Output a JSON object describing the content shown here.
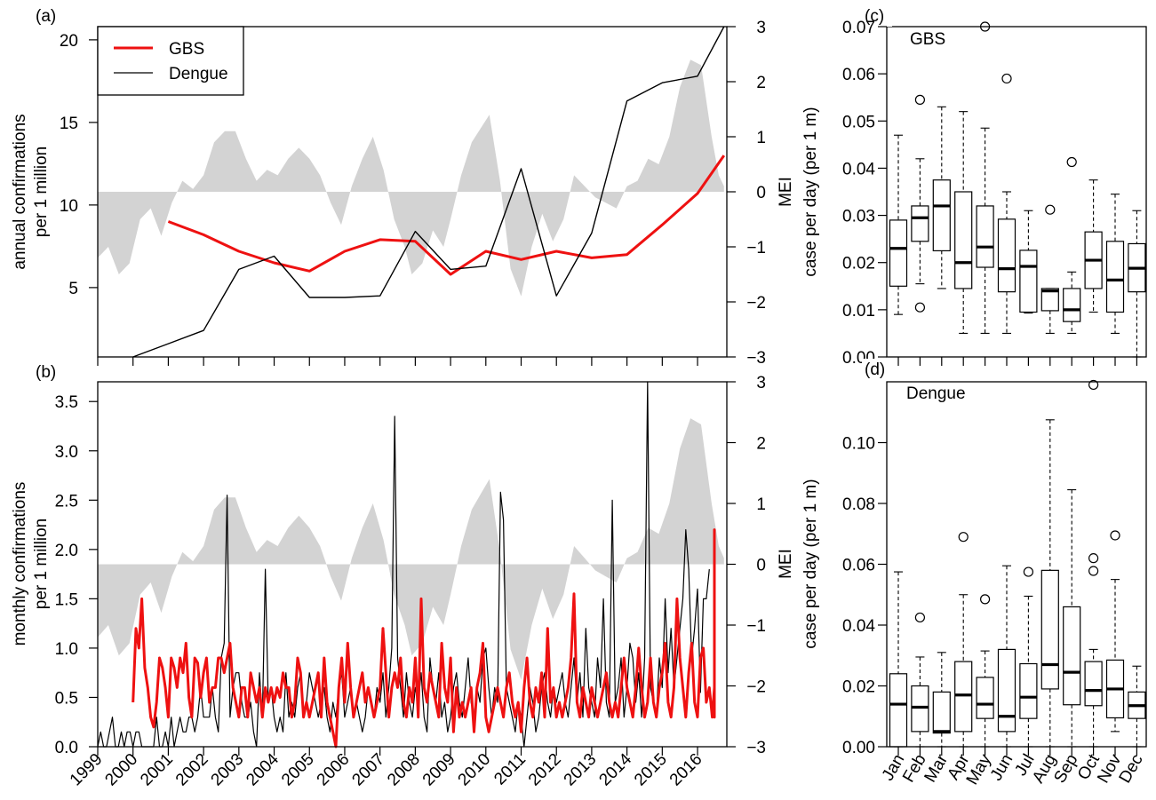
{
  "chart_data": [
    {
      "id": "a",
      "panel_label": "(a)",
      "type": "line",
      "ylabel_left": [
        "annual confirmations",
        "per 1 million"
      ],
      "ylabel_right": "MEI",
      "ylim_left": [
        0.8,
        20.8
      ],
      "yticks_left": [
        "5",
        "10",
        "15",
        "20"
      ],
      "ylim_right": [
        -3,
        3
      ],
      "yticks_right": [
        "3",
        "2",
        "1",
        "0",
        "−1",
        "−2",
        "−3"
      ],
      "legend_position": "top-left",
      "legend": [
        "GBS",
        "Dengue"
      ],
      "colors": {
        "GBS": "#ee1111",
        "Dengue": "#000000",
        "MEI": "#d3d3d3"
      },
      "series": [
        {
          "name": "GBS",
          "x": [
            2001,
            2002,
            2003,
            2004,
            2005,
            2006,
            2007,
            2008,
            2009,
            2010,
            2011,
            2012,
            2013,
            2014,
            2015,
            2016,
            2016.75
          ],
          "values": [
            9.0,
            8.2,
            7.2,
            6.5,
            6.0,
            7.2,
            7.9,
            7.8,
            5.8,
            7.2,
            6.7,
            7.2,
            6.8,
            7.0,
            8.8,
            10.7,
            13.0
          ]
        },
        {
          "name": "Dengue",
          "x": [
            2000,
            2001,
            2002,
            2003,
            2004,
            2005,
            2006,
            2007,
            2008,
            2009,
            2010,
            2011,
            2012,
            2013,
            2014,
            2015,
            2016,
            2016.75
          ],
          "values": [
            0.8,
            1.6,
            2.4,
            6.1,
            6.9,
            4.4,
            4.4,
            4.5,
            8.4,
            6.1,
            6.3,
            12.2,
            4.5,
            8.3,
            16.3,
            17.4,
            17.8,
            20.8
          ]
        }
      ]
    },
    {
      "id": "b",
      "panel_label": "(b)",
      "type": "line",
      "ylabel_left": [
        "monthly confirmations",
        "per 1 million"
      ],
      "ylabel_right": "MEI",
      "ylim_left": [
        0,
        3.7
      ],
      "yticks_left": [
        "0.0",
        "0.5",
        "1.0",
        "1.5",
        "2.0",
        "2.5",
        "3.0",
        "3.5"
      ],
      "ylim_right": [
        -3,
        3
      ],
      "yticks_right": [
        "3",
        "2",
        "1",
        "0",
        "−1",
        "−2",
        "−3"
      ],
      "xticks": [
        "1999",
        "2000",
        "2001",
        "2002",
        "2003",
        "2004",
        "2005",
        "2006",
        "2007",
        "2008",
        "2009",
        "2010",
        "2011",
        "2012",
        "2013",
        "2014",
        "2015",
        "2016"
      ],
      "colors": {
        "GBS": "#ee1111",
        "Dengue": "#000000",
        "MEI": "#d3d3d3"
      },
      "series": [
        {
          "name": "GBS",
          "x_start": 2000,
          "x_step": 0.08333,
          "values": [
            0.45,
            1.2,
            1.0,
            1.5,
            0.8,
            0.6,
            0.3,
            0.2,
            0.45,
            0.9,
            0.8,
            0.6,
            0.3,
            0.9,
            0.8,
            0.6,
            0.9,
            0.75,
            1.05,
            0.5,
            0.3,
            0.9,
            0.85,
            0.5,
            0.75,
            0.9,
            0.45,
            0.6,
            0.6,
            0.9,
            0.9,
            0.75,
            0.9,
            1.05,
            0.6,
            0.45,
            0.3,
            0.6,
            0.6,
            0.3,
            0.75,
            0.6,
            0.45,
            0.6,
            0.3,
            0.6,
            0.45,
            0.6,
            0.45,
            0.6,
            0.5,
            0.75,
            0.6,
            0.6,
            0.3,
            0.45,
            0.9,
            0.75,
            0.3,
            0.45,
            0.3,
            0.45,
            0.6,
            0.75,
            0.3,
            0.9,
            0.45,
            0.3,
            0.15,
            0.0,
            0.6,
            0.9,
            0.45,
            1.05,
            0.6,
            0.3,
            0.45,
            0.6,
            0.75,
            0.45,
            0.6,
            0.45,
            0.3,
            0.45,
            0.6,
            1.2,
            0.75,
            0.3,
            0.6,
            0.75,
            0.6,
            0.9,
            0.45,
            0.3,
            0.6,
            0.45,
            0.9,
            0.3,
            1.5,
            0.6,
            0.45,
            0.75,
            0.6,
            0.45,
            0.3,
            1.05,
            0.6,
            0.45,
            0.9,
            0.15,
            0.6,
            0.3,
            0.45,
            0.3,
            0.45,
            0.6,
            0.15,
            0.6,
            0.75,
            1.05,
            0.3,
            0.15,
            0.3,
            0.45,
            0.6,
            0.45,
            0.3,
            0.6,
            0.75,
            0.45,
            0.3,
            0.45,
            0.15,
            0.6,
            0.9,
            0.45,
            0.3,
            0.6,
            0.45,
            0.75,
            0.3,
            1.2,
            0.45,
            0.6,
            0.3,
            0.45,
            0.3,
            0.45,
            0.6,
            0.9,
            1.55,
            0.45,
            0.3,
            0.6,
            0.45,
            0.3,
            0.6,
            0.45,
            0.3,
            0.45,
            0.6,
            0.75,
            0.45,
            0.3,
            0.45,
            0.3,
            0.6,
            0.9,
            0.6,
            0.45,
            0.3,
            0.6,
            1.0,
            0.6,
            0.3,
            0.45,
            0.9,
            0.45,
            0.3,
            0.6,
            0.75,
            1.05,
            0.45,
            0.3,
            0.6,
            1.5,
            0.9,
            0.6,
            0.3,
            0.75,
            1.05,
            0.45,
            0.3,
            0.9,
            1.0,
            0.45,
            0.6,
            0.3,
            0.6,
            1.2,
            0.9,
            0.6,
            0.3,
            0.75,
            1.05,
            0.45,
            0.3,
            0.6,
            1.2,
            1.5,
            0.9,
            0.6,
            0.45,
            1.6,
            1.0,
            0.6,
            0.3,
            0.9,
            1.5,
            1.05,
            2.2,
            1.8,
            0.95
          ]
        },
        {
          "name": "Dengue",
          "x_start": 1999,
          "x_step": 0.08333,
          "values": [
            0.0,
            0.15,
            0.0,
            0.0,
            0.15,
            0.3,
            0.0,
            0.0,
            0.15,
            0.0,
            0.15,
            0.15,
            0.0,
            0.15,
            0.15,
            0.0,
            0.0,
            0.0,
            0.0,
            0.0,
            0.3,
            0.0,
            0.0,
            0.15,
            0.0,
            0.3,
            0.0,
            0.15,
            0.3,
            0.15,
            0.15,
            0.3,
            0.3,
            0.15,
            0.3,
            0.6,
            0.3,
            0.3,
            0.3,
            0.6,
            0.3,
            0.15,
            0.9,
            1.05,
            2.55,
            0.3,
            0.6,
            0.75,
            0.75,
            0.45,
            0.3,
            0.3,
            0.45,
            0.15,
            0.0,
            0.75,
            0.3,
            1.8,
            0.45,
            0.6,
            0.3,
            0.15,
            0.3,
            0.15,
            0.75,
            0.3,
            0.45,
            0.3,
            0.6,
            0.75,
            0.3,
            0.45,
            0.75,
            0.6,
            0.45,
            0.3,
            0.45,
            0.6,
            0.3,
            0.15,
            0.45,
            0.3,
            0.6,
            0.75,
            0.3,
            0.45,
            0.6,
            0.3,
            0.45,
            0.3,
            0.15,
            0.3,
            0.6,
            0.45,
            0.3,
            0.6,
            0.45,
            0.75,
            0.3,
            0.6,
            1.0,
            3.35,
            0.9,
            0.6,
            0.3,
            0.75,
            0.45,
            0.3,
            0.6,
            0.45,
            0.75,
            0.3,
            0.15,
            0.9,
            0.6,
            0.45,
            0.75,
            0.3,
            0.45,
            0.15,
            0.3,
            0.6,
            0.75,
            0.45,
            0.3,
            0.6,
            0.9,
            0.45,
            0.3,
            0.6,
            0.45,
            0.9,
            1.0,
            0.6,
            0.3,
            0.6,
            0.45,
            2.58,
            2.3,
            0.6,
            0.45,
            0.3,
            0.15,
            0.45,
            0.3,
            0.0,
            0.3,
            0.6,
            0.45,
            0.15,
            0.3,
            0.6,
            0.75,
            0.45,
            0.3,
            0.6,
            0.45,
            0.6,
            0.75,
            0.45,
            0.3,
            0.6,
            0.9,
            0.45,
            0.75,
            0.3,
            1.2,
            0.6,
            0.45,
            0.3,
            0.9,
            0.6,
            1.5,
            0.45,
            0.3,
            2.5,
            0.45,
            0.6,
            0.9,
            0.3,
            0.6,
            1.05,
            0.9,
            0.45,
            0.75,
            0.3,
            0.9,
            3.7,
            0.6,
            0.45,
            0.3,
            0.9,
            0.6,
            1.5,
            0.75,
            1.2,
            0.6,
            0.9,
            1.2,
            1.5,
            2.2,
            1.8,
            0.9,
            1.2,
            1.6,
            0.55,
            1.5,
            1.5,
            1.8
          ]
        }
      ]
    },
    {
      "id": "c",
      "panel_label": "(c)",
      "type": "box",
      "title": "GBS",
      "ylabel": "case per day (per 1 m)",
      "ylim": [
        0,
        0.07
      ],
      "yticks": [
        "0.00",
        "0.01",
        "0.02",
        "0.03",
        "0.04",
        "0.05",
        "0.06",
        "0.07"
      ],
      "categories": [
        "Jan",
        "Feb",
        "Mar",
        "Apr",
        "May",
        "Jun",
        "Jul",
        "Aug",
        "Sep",
        "Oct",
        "Nov",
        "Dec"
      ],
      "boxes": [
        {
          "min": 0.009,
          "q1": 0.015,
          "median": 0.023,
          "q3": 0.029,
          "max": 0.047,
          "outliers": []
        },
        {
          "min": 0.0155,
          "q1": 0.0245,
          "median": 0.0295,
          "q3": 0.032,
          "max": 0.042,
          "outliers": [
            0.0545,
            0.0105
          ]
        },
        {
          "min": 0.0145,
          "q1": 0.0225,
          "median": 0.032,
          "q3": 0.0375,
          "max": 0.053,
          "outliers": []
        },
        {
          "min": 0.005,
          "q1": 0.0145,
          "median": 0.02,
          "q3": 0.035,
          "max": 0.052,
          "outliers": []
        },
        {
          "min": 0.005,
          "q1": 0.019,
          "median": 0.0233,
          "q3": 0.032,
          "max": 0.0485,
          "outliers": [
            0.0705
          ]
        },
        {
          "min": 0.005,
          "q1": 0.0138,
          "median": 0.0187,
          "q3": 0.0292,
          "max": 0.035,
          "outliers": [
            0.059
          ]
        },
        {
          "min": 0.0093,
          "q1": 0.0095,
          "median": 0.0192,
          "q3": 0.0226,
          "max": 0.031,
          "outliers": []
        },
        {
          "min": 0.005,
          "q1": 0.0098,
          "median": 0.014,
          "q3": 0.0145,
          "max": 0.0145,
          "outliers": [
            0.0312
          ]
        },
        {
          "min": 0.005,
          "q1": 0.0075,
          "median": 0.01,
          "q3": 0.0145,
          "max": 0.018,
          "outliers": [
            0.0413
          ]
        },
        {
          "min": 0.0095,
          "q1": 0.0145,
          "median": 0.0205,
          "q3": 0.0265,
          "max": 0.0375,
          "outliers": []
        },
        {
          "min": 0.005,
          "q1": 0.0095,
          "median": 0.0163,
          "q3": 0.0245,
          "max": 0.0345,
          "outliers": []
        },
        {
          "min": 0.0,
          "q1": 0.0138,
          "median": 0.0188,
          "q3": 0.024,
          "max": 0.031,
          "outliers": []
        }
      ]
    },
    {
      "id": "d",
      "panel_label": "(d)",
      "type": "box",
      "title": "Dengue",
      "ylabel": "case per day (per 1 m)",
      "ylim": [
        0,
        0.12
      ],
      "yticks": [
        "0.00",
        "0.02",
        "0.04",
        "0.06",
        "0.08",
        "0.10"
      ],
      "categories": [
        "Jan",
        "Feb",
        "Mar",
        "Apr",
        "May",
        "Jun",
        "Jul",
        "Aug",
        "Sep",
        "Oct",
        "Nov",
        "Dec"
      ],
      "boxes": [
        {
          "min": 0.0,
          "q1": 0.0,
          "median": 0.014,
          "q3": 0.024,
          "max": 0.0575,
          "outliers": []
        },
        {
          "min": 0.0,
          "q1": 0.005,
          "median": 0.013,
          "q3": 0.02,
          "max": 0.0295,
          "outliers": [
            0.0425
          ]
        },
        {
          "min": 0.0,
          "q1": 0.0045,
          "median": 0.005,
          "q3": 0.018,
          "max": 0.031,
          "outliers": []
        },
        {
          "min": 0.0,
          "q1": 0.005,
          "median": 0.017,
          "q3": 0.028,
          "max": 0.05,
          "outliers": [
            0.069
          ]
        },
        {
          "min": 0.0,
          "q1": 0.0093,
          "median": 0.014,
          "q3": 0.0228,
          "max": 0.0315,
          "outliers": [
            0.0485
          ]
        },
        {
          "min": 0.0,
          "q1": 0.005,
          "median": 0.01,
          "q3": 0.032,
          "max": 0.0595,
          "outliers": []
        },
        {
          "min": 0.0,
          "q1": 0.0093,
          "median": 0.0163,
          "q3": 0.0273,
          "max": 0.0495,
          "outliers": [
            0.0575
          ]
        },
        {
          "min": 0.0,
          "q1": 0.019,
          "median": 0.027,
          "q3": 0.058,
          "max": 0.1075,
          "outliers": []
        },
        {
          "min": 0.0,
          "q1": 0.0138,
          "median": 0.0245,
          "q3": 0.046,
          "max": 0.0845,
          "outliers": []
        },
        {
          "min": 0.0,
          "q1": 0.0135,
          "median": 0.0185,
          "q3": 0.028,
          "max": 0.032,
          "outliers": [
            0.062,
            0.0578,
            0.119
          ]
        },
        {
          "min": 0.005,
          "q1": 0.0095,
          "median": 0.019,
          "q3": 0.0285,
          "max": 0.055,
          "outliers": [
            0.0695
          ]
        },
        {
          "min": 0.0,
          "q1": 0.0093,
          "median": 0.0135,
          "q3": 0.018,
          "max": 0.0265,
          "outliers": []
        }
      ]
    }
  ]
}
